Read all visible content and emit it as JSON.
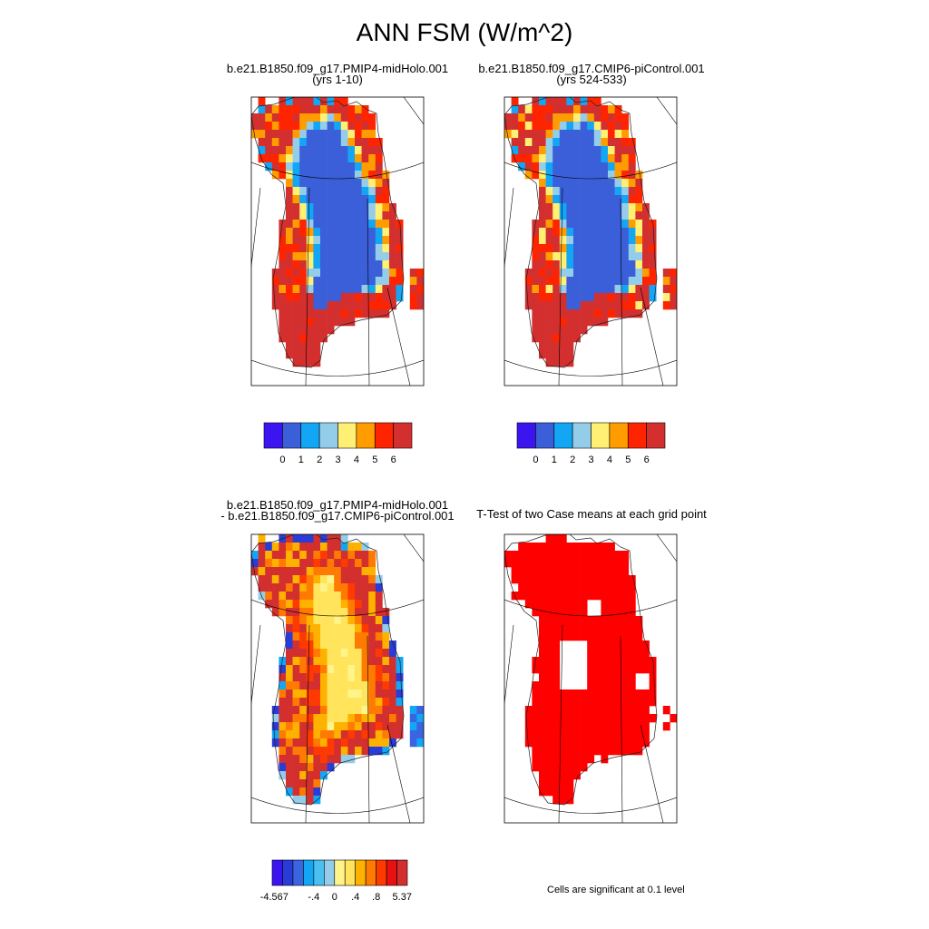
{
  "figure": {
    "title": "ANN FSM (W/m^2)"
  },
  "panels": {
    "top_left": {
      "title_line1": "b.e21.B1850.f09_g17.PMIP4-midHolo.001",
      "title_line2": "(yrs 1-10)"
    },
    "top_right": {
      "title_line1": "b.e21.B1850.f09_g17.CMIP6-piControl.001",
      "title_line2": "(yrs 524-533)"
    },
    "bottom_left": {
      "title_line1": "b.e21.B1850.f09_g17.PMIP4-midHolo.001",
      "title_line2": "- b.e21.B1850.f09_g17.CMIP6-piControl.001"
    },
    "bottom_right": {
      "title": "T-Test of two Case means at each grid point",
      "note": "Cells are significant at 0.1 level",
      "significant_color": "#ff0000"
    }
  },
  "chart_data": [
    {
      "type": "heatmap",
      "title": "b.e21.B1850.f09_g17.PMIP4-midHolo.001 (yrs 1-10)",
      "map": "Greenland",
      "colorbar": {
        "colors": [
          "#3c14f0",
          "#3a5fd8",
          "#12a6f5",
          "#94cdea",
          "#ffef73",
          "#ff9c00",
          "#ff2400",
          "#d32f2f"
        ],
        "tick_labels": [
          "0",
          "1",
          "2",
          "3",
          "4",
          "5",
          "6"
        ]
      }
    },
    {
      "type": "heatmap",
      "title": "b.e21.B1850.f09_g17.CMIP6-piControl.001 (yrs 524-533)",
      "map": "Greenland",
      "colorbar": {
        "colors": [
          "#3c14f0",
          "#3a5fd8",
          "#12a6f5",
          "#94cdea",
          "#ffef73",
          "#ff9c00",
          "#ff2400",
          "#d32f2f"
        ],
        "tick_labels": [
          "0",
          "1",
          "2",
          "3",
          "4",
          "5",
          "6"
        ]
      }
    },
    {
      "type": "heatmap",
      "title": "b.e21.B1850.f09_g17.PMIP4-midHolo.001 - b.e21.B1850.f09_g17.CMIP6-piControl.001",
      "map": "Greenland",
      "colorbar": {
        "colors": [
          "#3c14f0",
          "#2a3cd8",
          "#3a64e0",
          "#12a6f5",
          "#4ac0f0",
          "#94cdea",
          "#fff48a",
          "#ffe45c",
          "#ffb100",
          "#ff7a00",
          "#ff3a00",
          "#e81010",
          "#d32f2f"
        ],
        "tick_labels": [
          "-4.567",
          "-.4",
          "0",
          ".4",
          ".8",
          "5.37"
        ]
      }
    },
    {
      "type": "heatmap",
      "title": "T-Test of two Case means at each grid point",
      "map": "Greenland",
      "legend": "Cells are significant at 0.1 level"
    }
  ]
}
